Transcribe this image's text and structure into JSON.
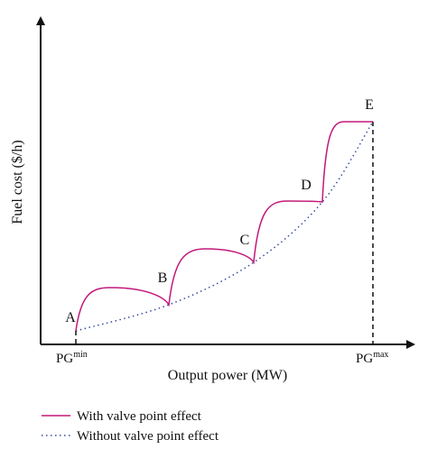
{
  "chart_data": {
    "type": "line",
    "xlabel": "Output power (MW)",
    "ylabel": "Fuel cost ($/h)",
    "x_ticks": [
      {
        "base": "P",
        "sub": "G",
        "sup": "min"
      },
      {
        "base": "P",
        "sub": "G",
        "sup": "max"
      }
    ],
    "points": [
      "A",
      "B",
      "C",
      "D",
      "E"
    ],
    "series": [
      {
        "name": "With valve point effect",
        "color": "#c2187a",
        "style": "solid"
      },
      {
        "name": "Without valve point effect",
        "color": "#3a4aa0",
        "style": "dotted"
      }
    ],
    "legend_position": "bottom-left",
    "grid": false
  }
}
